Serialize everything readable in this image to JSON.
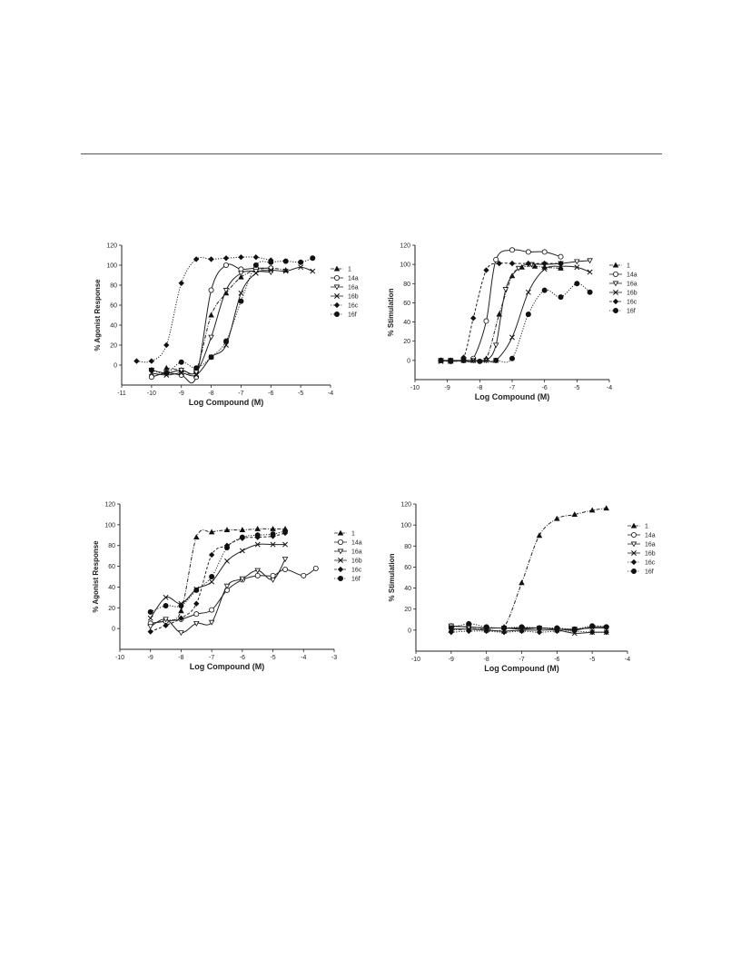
{
  "chart_data": [
    {
      "type": "scatter",
      "title": "",
      "xlabel": "Log Compound (M)",
      "ylabel": "% Agonist Response",
      "xlim": [
        -11,
        -4
      ],
      "ylim": [
        -20,
        120
      ],
      "xticks": [
        -11,
        -10,
        -9,
        -8,
        -7,
        -6,
        -5,
        -4
      ],
      "yticks": [
        0,
        20,
        40,
        60,
        80,
        100,
        120
      ],
      "legend_position": "right",
      "series": [
        {
          "name": "1",
          "marker": "triangle-up",
          "line": "dash-dot",
          "x": [
            -9.5,
            -9,
            -8.5,
            -8,
            -7.5,
            -7,
            -6.5,
            -6,
            -5.5
          ],
          "y": [
            -3,
            -5,
            -5,
            50,
            72,
            88,
            95,
            97,
            95
          ]
        },
        {
          "name": "14a",
          "marker": "circle-open",
          "line": "solid",
          "x": [
            -10,
            -9.5,
            -9,
            -8.5,
            -8,
            -7.5,
            -7,
            -6.5,
            -6
          ],
          "y": [
            -12,
            -8,
            -10,
            -12,
            75,
            100,
            96,
            97,
            97
          ]
        },
        {
          "name": "16a",
          "marker": "triangle-down-open",
          "line": "solid",
          "x": [
            -10,
            -9.5,
            -9,
            -8.5,
            -8,
            -7.5,
            -7,
            -6.5,
            -6
          ],
          "y": [
            -5,
            -8,
            -5,
            -7,
            28,
            75,
            92,
            94,
            93
          ]
        },
        {
          "name": "16b",
          "marker": "x",
          "line": "solid",
          "x": [
            -10,
            -9.5,
            -9,
            -8.5,
            -8,
            -7.5,
            -7,
            -6.5,
            -6,
            -5.5,
            -5,
            -4.6
          ],
          "y": [
            -8,
            -10,
            -8,
            -10,
            8,
            20,
            72,
            92,
            95,
            94,
            98,
            94
          ]
        },
        {
          "name": "16c",
          "marker": "diamond",
          "line": "dotted",
          "x": [
            -10.5,
            -10,
            -9.5,
            -9,
            -8.5,
            -8,
            -7.5,
            -7,
            -6.5,
            -6
          ],
          "y": [
            4,
            4,
            20,
            82,
            106,
            106,
            107,
            108,
            108,
            105
          ]
        },
        {
          "name": "16f",
          "marker": "circle",
          "line": "dotted",
          "x": [
            -10,
            -9.5,
            -9,
            -8.5,
            -8,
            -7.5,
            -7,
            -6.5,
            -6,
            -5.5,
            -5,
            -4.6
          ],
          "y": [
            -5,
            -8,
            3,
            -3,
            8,
            24,
            64,
            100,
            103,
            104,
            103,
            107
          ]
        }
      ]
    },
    {
      "type": "scatter",
      "title": "",
      "xlabel": "Log Compound (M)",
      "ylabel": "% Stimulation",
      "xlim": [
        -10,
        -4
      ],
      "ylim": [
        -20,
        120
      ],
      "xticks": [
        -10,
        -9,
        -8,
        -7,
        -6,
        -5,
        -4
      ],
      "yticks": [
        0,
        20,
        40,
        60,
        80,
        100,
        120
      ],
      "legend_position": "right",
      "series": [
        {
          "name": "1",
          "marker": "triangle-up",
          "line": "dash-dot",
          "x": [
            -9.2,
            -8.9,
            -8.5,
            -8.2,
            -7.8,
            -7.4,
            -7,
            -6.7,
            -6.3,
            -6,
            -5.5
          ],
          "y": [
            0,
            -1,
            0,
            0,
            2,
            48,
            88,
            97,
            98,
            97,
            96
          ]
        },
        {
          "name": "14a",
          "marker": "circle-open",
          "line": "solid",
          "x": [
            -9.2,
            -8.9,
            -8.5,
            -8.2,
            -7.8,
            -7.5,
            -7,
            -6.5,
            -6,
            -5.5
          ],
          "y": [
            0,
            0,
            0,
            2,
            41,
            105,
            115,
            113,
            113,
            108
          ]
        },
        {
          "name": "16a",
          "marker": "triangle-down-open",
          "line": "solid",
          "x": [
            -9.2,
            -8.9,
            -8.5,
            -8.2,
            -7.8,
            -7.5,
            -7.2,
            -6.8,
            -6.4,
            -6,
            -5.5,
            -5,
            -4.6
          ],
          "y": [
            0,
            -1,
            0,
            0,
            0,
            16,
            74,
            96,
            100,
            100,
            101,
            103,
            104
          ]
        },
        {
          "name": "16b",
          "marker": "x",
          "line": "solid",
          "x": [
            -9.2,
            -8.9,
            -8.5,
            -8.2,
            -7.8,
            -7.5,
            -7,
            -6.5,
            -6,
            -5.5,
            -5,
            -4.6
          ],
          "y": [
            -1,
            0,
            0,
            0,
            0,
            0,
            24,
            71,
            95,
            98,
            97,
            92
          ]
        },
        {
          "name": "16c",
          "marker": "diamond",
          "line": "dashed",
          "x": [
            -9.2,
            -8.9,
            -8.5,
            -8.2,
            -7.8,
            -7.4,
            -7,
            -6.5,
            -6,
            -5.5
          ],
          "y": [
            0,
            0,
            3,
            44,
            94,
            101,
            101,
            101,
            101,
            101
          ]
        },
        {
          "name": "16f",
          "marker": "circle",
          "line": "dotted",
          "x": [
            -9.2,
            -8.9,
            -8.5,
            -8,
            -7.5,
            -7,
            -6.5,
            -6,
            -5.5,
            -5,
            -4.6
          ],
          "y": [
            0,
            -1,
            0,
            -1,
            0,
            2,
            48,
            73,
            66,
            80,
            71
          ]
        }
      ]
    },
    {
      "type": "scatter",
      "title": "",
      "xlabel": "Log Compound (M)",
      "ylabel": "% Agonist Response",
      "xlim": [
        -10,
        -3
      ],
      "ylim": [
        -20,
        120
      ],
      "xticks": [
        -10,
        -9,
        -8,
        -7,
        -6,
        -5,
        -4,
        -3
      ],
      "yticks": [
        0,
        20,
        40,
        60,
        80,
        100,
        120
      ],
      "legend_position": "right",
      "series": [
        {
          "name": "1",
          "marker": "triangle-up",
          "line": "dash-dot",
          "x": [
            -9,
            -8.5,
            -8,
            -7.5,
            -7,
            -6.5,
            -6,
            -5.5,
            -5,
            -4.6
          ],
          "y": [
            5,
            8,
            17,
            88,
            93,
            95,
            95,
            96,
            96,
            96
          ]
        },
        {
          "name": "14a",
          "marker": "circle-open",
          "line": "solid",
          "x": [
            -9,
            -8.5,
            -8,
            -7.5,
            -7,
            -6.5,
            -6,
            -5.5,
            -5,
            -4.6,
            -4,
            -3.6
          ],
          "y": [
            5,
            7,
            9,
            14,
            18,
            37,
            47,
            51,
            51,
            57,
            51,
            58
          ]
        },
        {
          "name": "16a",
          "marker": "triangle-down-open",
          "line": "solid",
          "x": [
            -9,
            -8.5,
            -8,
            -7.5,
            -7,
            -6.5,
            -6,
            -5.5,
            -5,
            -4.6
          ],
          "y": [
            2,
            9,
            -4,
            5,
            6,
            41,
            48,
            56,
            47,
            67
          ]
        },
        {
          "name": "16b",
          "marker": "x",
          "line": "solid",
          "x": [
            -9,
            -8.5,
            -8,
            -7.5,
            -7,
            -6.5,
            -6,
            -5.5,
            -5,
            -4.6
          ],
          "y": [
            10,
            30,
            24,
            38,
            45,
            65,
            75,
            81,
            81,
            81
          ]
        },
        {
          "name": "16c",
          "marker": "diamond",
          "line": "dashed",
          "x": [
            -9,
            -8.5,
            -8,
            -7.5,
            -7,
            -6.5,
            -6,
            -5.5,
            -5,
            -4.6
          ],
          "y": [
            -3,
            3,
            10,
            24,
            71,
            80,
            87,
            88,
            89,
            92
          ]
        },
        {
          "name": "16f",
          "marker": "circle",
          "line": "dotted",
          "x": [
            -9,
            -8.5,
            -8,
            -7.5,
            -7,
            -6.5,
            -6,
            -5.5,
            -5,
            -4.6
          ],
          "y": [
            16,
            22,
            22,
            37,
            50,
            78,
            88,
            90,
            91,
            94
          ]
        }
      ]
    },
    {
      "type": "scatter",
      "title": "",
      "xlabel": "Log Compound (M)",
      "ylabel": "% Stimulation",
      "xlim": [
        -10,
        -4
      ],
      "ylim": [
        -20,
        120
      ],
      "xticks": [
        -10,
        -9,
        -8,
        -7,
        -6,
        -5,
        -4
      ],
      "yticks": [
        0,
        20,
        40,
        60,
        80,
        100,
        120
      ],
      "legend_position": "right",
      "series": [
        {
          "name": "1",
          "marker": "triangle-up",
          "line": "dash-dot",
          "x": [
            -9,
            -8.5,
            -8,
            -7.5,
            -7,
            -6.5,
            -6,
            -5.5,
            -5,
            -4.6
          ],
          "y": [
            0,
            1,
            1,
            3,
            45,
            90,
            106,
            110,
            114,
            116
          ]
        },
        {
          "name": "14a",
          "marker": "circle-open",
          "line": "solid",
          "x": [
            -9,
            -8.5,
            -8,
            -7.5,
            -7,
            -6.5,
            -6,
            -5.5,
            -5,
            -4.6
          ],
          "y": [
            4,
            3,
            2,
            2,
            1,
            2,
            1,
            0,
            3,
            3
          ]
        },
        {
          "name": "16a",
          "marker": "triangle-down-open",
          "line": "solid",
          "x": [
            -9,
            -8.5,
            -8,
            -7.5,
            -7,
            -6.5,
            -6,
            -5.5,
            -5,
            -4.6
          ],
          "y": [
            4,
            3,
            2,
            2,
            2,
            2,
            1,
            1,
            2,
            2
          ]
        },
        {
          "name": "16b",
          "marker": "x",
          "line": "solid",
          "x": [
            -9,
            -8.5,
            -8,
            -7.5,
            -7,
            -6.5,
            -6,
            -5.5,
            -5,
            -4.6
          ],
          "y": [
            1,
            1,
            0,
            -1,
            0,
            0,
            0,
            -3,
            -2,
            -2
          ]
        },
        {
          "name": "16c",
          "marker": "diamond",
          "line": "dotted",
          "x": [
            -9,
            -8.5,
            -8,
            -7.5,
            -7,
            -6.5,
            -6,
            -5.5,
            -5,
            -4.6
          ],
          "y": [
            -2,
            -1,
            -1,
            -2,
            -1,
            -2,
            -1,
            -1,
            -2,
            -2
          ]
        },
        {
          "name": "16f",
          "marker": "circle",
          "line": "dotted",
          "x": [
            -9,
            -8.5,
            -8,
            -7.5,
            -7,
            -6.5,
            -6,
            -5.5,
            -5,
            -4.6
          ],
          "y": [
            2,
            6,
            3,
            2,
            3,
            2,
            2,
            1,
            4,
            3
          ]
        }
      ]
    }
  ]
}
